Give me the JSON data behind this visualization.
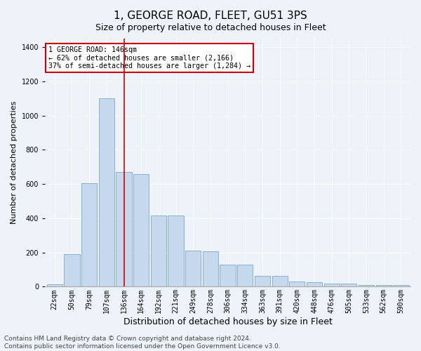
{
  "title": "1, GEORGE ROAD, FLEET, GU51 3PS",
  "subtitle": "Size of property relative to detached houses in Fleet",
  "xlabel": "Distribution of detached houses by size in Fleet",
  "ylabel": "Number of detached properties",
  "categories": [
    "22sqm",
    "50sqm",
    "79sqm",
    "107sqm",
    "136sqm",
    "164sqm",
    "192sqm",
    "221sqm",
    "249sqm",
    "278sqm",
    "306sqm",
    "334sqm",
    "363sqm",
    "391sqm",
    "420sqm",
    "448sqm",
    "476sqm",
    "505sqm",
    "533sqm",
    "562sqm",
    "590sqm"
  ],
  "values": [
    15,
    190,
    605,
    1100,
    670,
    660,
    415,
    415,
    210,
    205,
    130,
    130,
    65,
    65,
    30,
    25,
    18,
    18,
    8,
    8,
    8
  ],
  "bar_color": "#c5d8ed",
  "bar_edge_color": "#7aaac8",
  "highlight_index": 4,
  "highlight_line_color": "#cc0000",
  "ylim": [
    0,
    1450
  ],
  "yticks": [
    0,
    200,
    400,
    600,
    800,
    1000,
    1200,
    1400
  ],
  "annotation_title": "1 GEORGE ROAD: 146sqm",
  "annotation_line1": "← 62% of detached houses are smaller (2,166)",
  "annotation_line2": "37% of semi-detached houses are larger (1,284) →",
  "annotation_box_color": "#ffffff",
  "annotation_box_edge": "#cc0000",
  "footer1": "Contains HM Land Registry data © Crown copyright and database right 2024.",
  "footer2": "Contains public sector information licensed under the Open Government Licence v3.0.",
  "background_color": "#eef2f9",
  "grid_color": "#ffffff",
  "title_fontsize": 11,
  "subtitle_fontsize": 9,
  "xlabel_fontsize": 9,
  "ylabel_fontsize": 8,
  "tick_fontsize": 7,
  "footer_fontsize": 6.5
}
